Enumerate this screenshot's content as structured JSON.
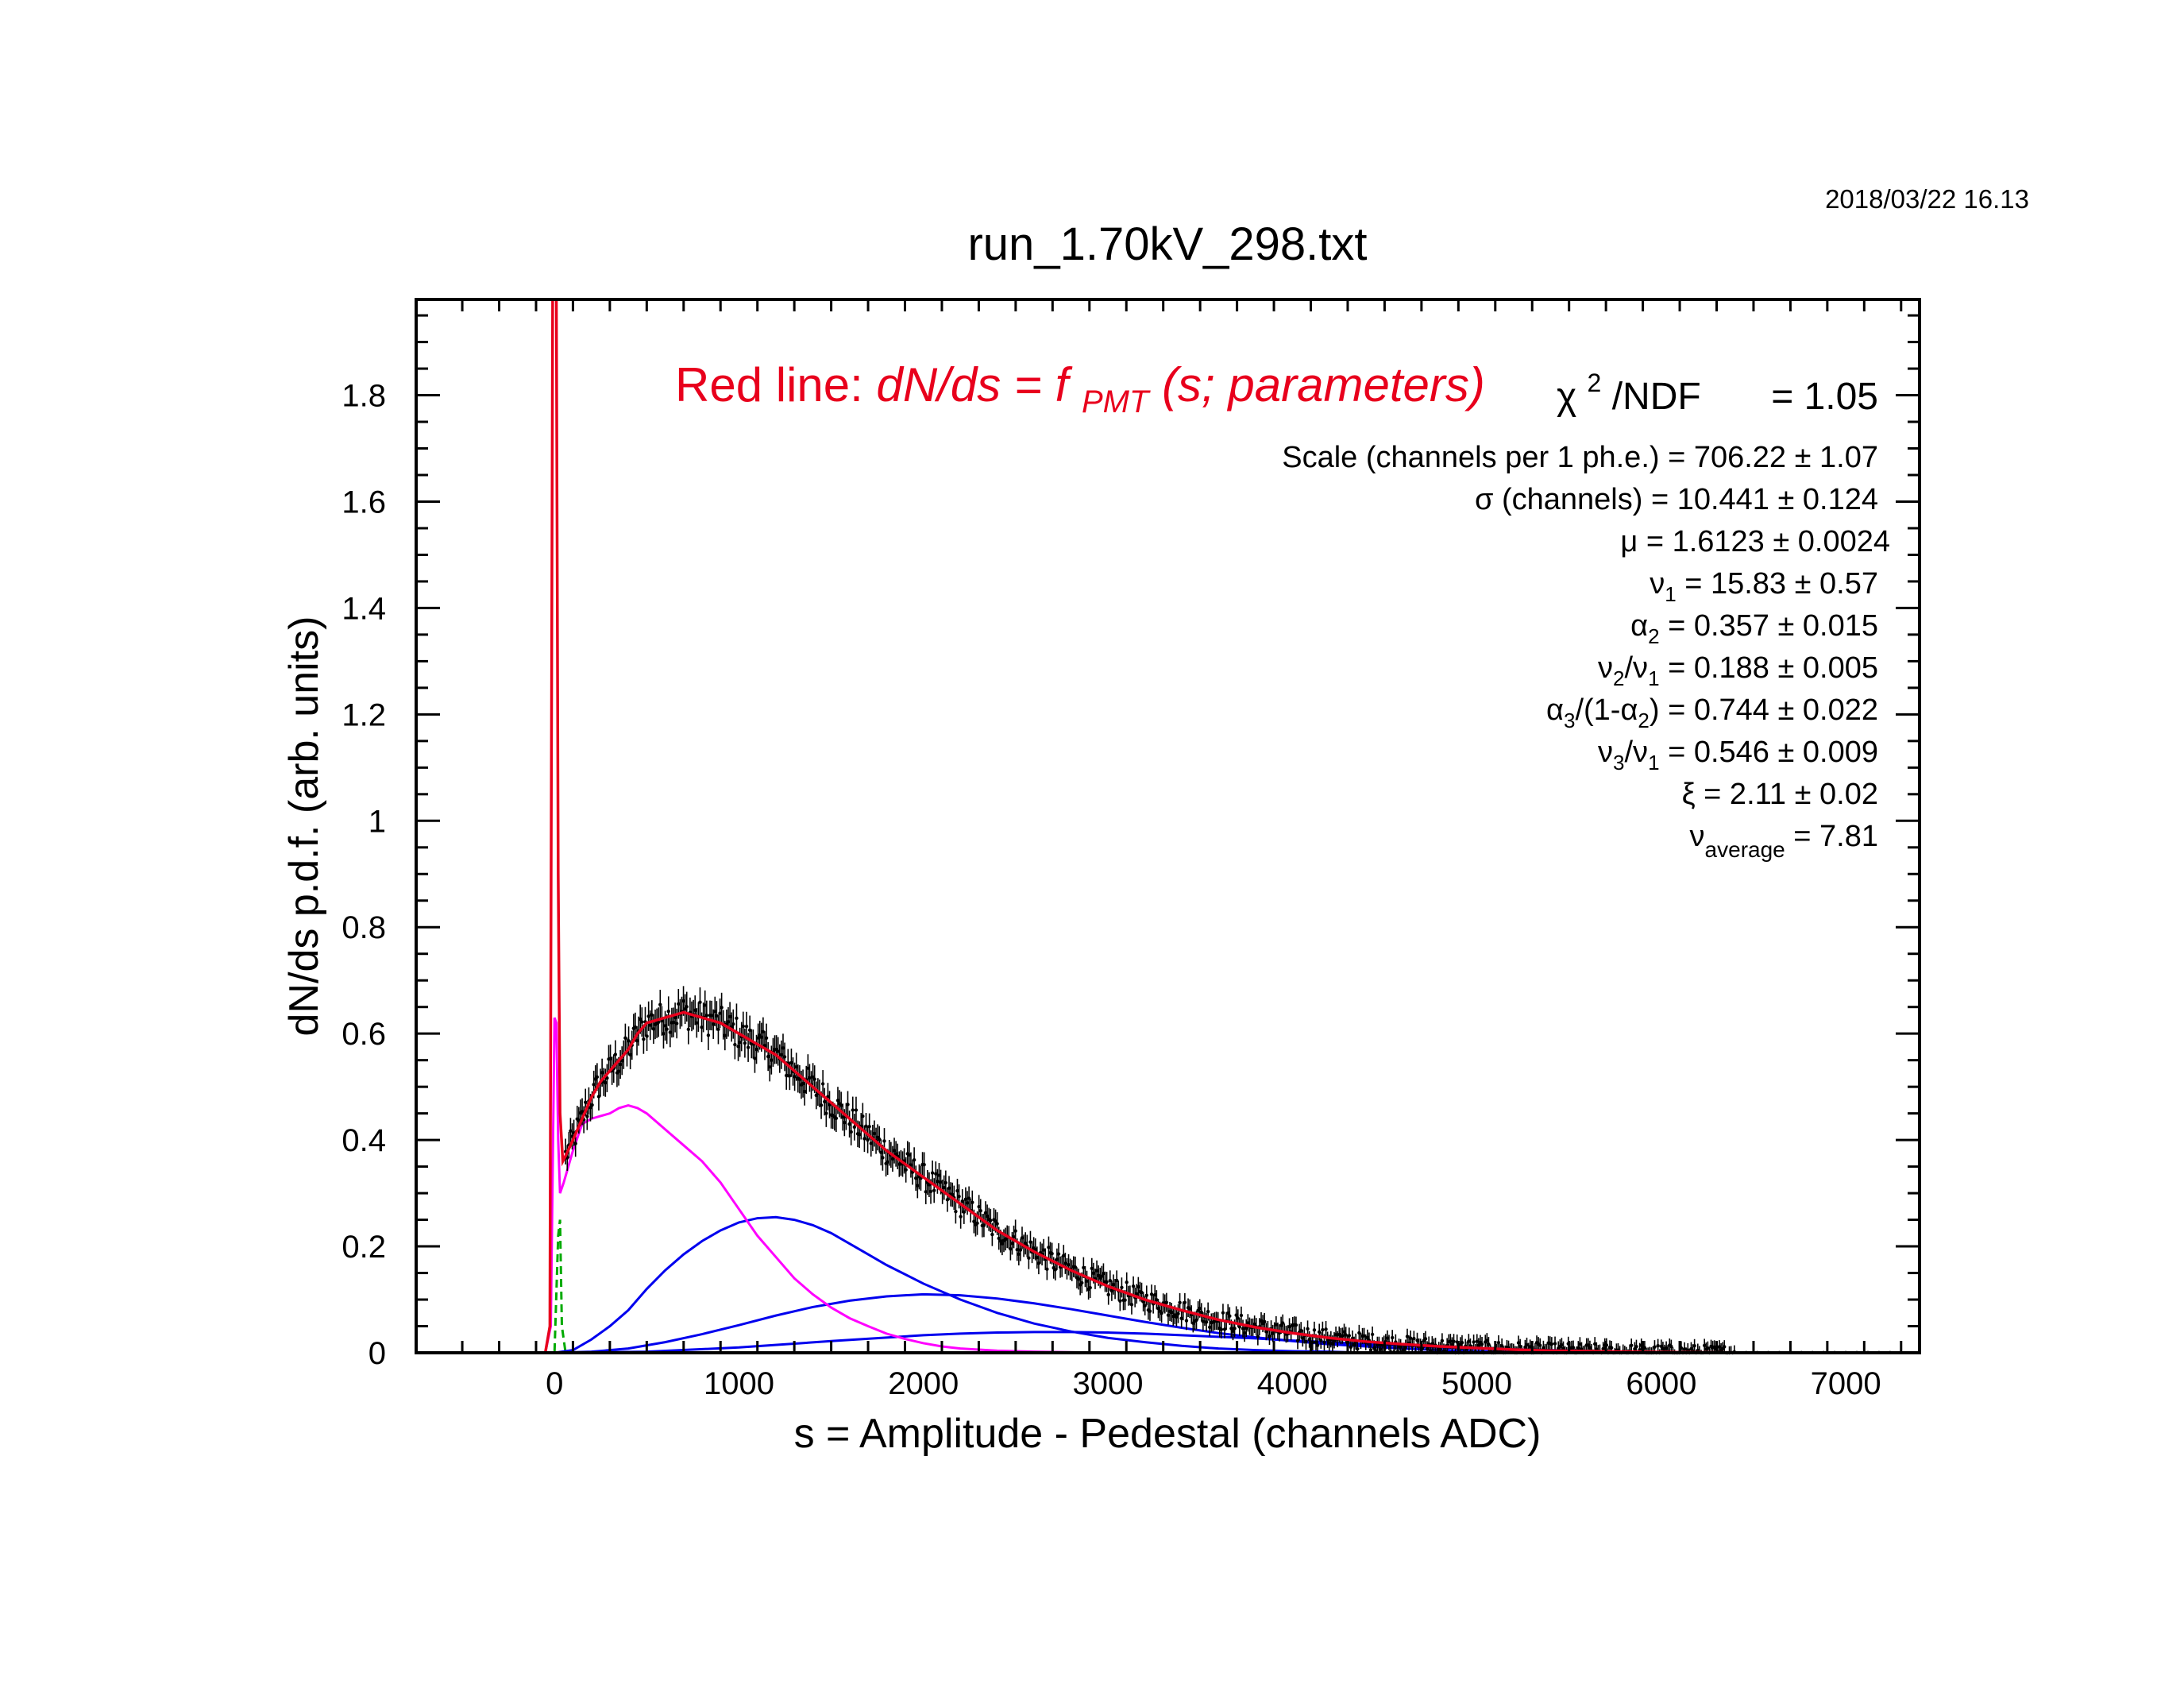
{
  "datestamp": "2018/03/22   16.13",
  "chart_data": {
    "type": "line",
    "title": "run_1.70kV_298.txt",
    "xlabel": "s = Amplitude - Pedestal (channels ADC)",
    "ylabel": "dN/ds p.d.f. (arb. units)",
    "xlim": [
      -750,
      7400
    ],
    "ylim": [
      0,
      1.98
    ],
    "xticks": [
      0,
      1000,
      2000,
      3000,
      4000,
      5000,
      6000,
      7000
    ],
    "xtick_labels": [
      "0",
      "1000",
      "2000",
      "3000",
      "4000",
      "5000",
      "6000",
      "7000"
    ],
    "yticks": [
      0,
      0.2,
      0.4,
      0.6,
      0.8,
      1,
      1.2,
      1.4,
      1.6,
      1.8
    ],
    "ytick_labels": [
      "0",
      "0.2",
      "0.4",
      "0.6",
      "0.8",
      "1",
      "1.2",
      "1.4",
      "1.6",
      "1.8"
    ],
    "grid": false,
    "colors": {
      "data": "#000000",
      "fit": "#e8001c",
      "single_pe": "#ff00ff",
      "multi_pe": "#0000ee",
      "pedestal": "#00aa00"
    },
    "series": [
      {
        "role": "data_histogram",
        "color": "#000000",
        "x": [
          60,
          100,
          150,
          200,
          250,
          300,
          350,
          400,
          450,
          500,
          600,
          700,
          800,
          900,
          1000,
          1100,
          1200,
          1300,
          1400,
          1500,
          1600,
          1700,
          1800,
          2000,
          2200,
          2400,
          2600,
          2800,
          3000,
          3200,
          3400,
          3600,
          3800,
          4000,
          4200,
          4400,
          4600,
          4800,
          5000,
          5200,
          5400,
          5600,
          5800,
          6000,
          6200,
          6400
        ],
        "y": [
          0.37,
          0.4,
          0.44,
          0.48,
          0.51,
          0.53,
          0.55,
          0.57,
          0.6,
          0.62,
          0.63,
          0.64,
          0.63,
          0.62,
          0.6,
          0.58,
          0.56,
          0.53,
          0.5,
          0.47,
          0.44,
          0.41,
          0.38,
          0.33,
          0.28,
          0.23,
          0.19,
          0.155,
          0.125,
          0.1,
          0.08,
          0.062,
          0.048,
          0.037,
          0.028,
          0.021,
          0.016,
          0.012,
          0.009,
          0.006,
          0.004,
          0.003,
          0.002,
          0.0013,
          0.0008,
          0.0004
        ]
      },
      {
        "role": "fit_total",
        "color": "#e8001c",
        "x": [
          -750,
          -50,
          -25,
          -10,
          0,
          10,
          20,
          30,
          45,
          60,
          100,
          150,
          200,
          250,
          300,
          350,
          400,
          450,
          500,
          600,
          700,
          800,
          900,
          1000,
          1100,
          1200,
          1300,
          1400,
          1500,
          1600,
          1700,
          1800,
          2000,
          2200,
          2400,
          2600,
          2800,
          3000,
          3200,
          3400,
          3600,
          3800,
          4000,
          4200,
          4400,
          4600,
          4800,
          5000,
          5200,
          5400,
          5600,
          5800,
          6000,
          6200,
          6400,
          7400
        ],
        "y": [
          0,
          0,
          0.05,
          1.98,
          1.98,
          1.98,
          0.9,
          0.45,
          0.36,
          0.37,
          0.4,
          0.44,
          0.48,
          0.51,
          0.53,
          0.55,
          0.57,
          0.6,
          0.62,
          0.63,
          0.64,
          0.63,
          0.62,
          0.6,
          0.58,
          0.56,
          0.53,
          0.5,
          0.47,
          0.44,
          0.41,
          0.38,
          0.33,
          0.28,
          0.23,
          0.19,
          0.155,
          0.125,
          0.1,
          0.08,
          0.062,
          0.048,
          0.037,
          0.028,
          0.021,
          0.016,
          0.012,
          0.009,
          0.006,
          0.004,
          0.003,
          0.002,
          0.0013,
          0.0008,
          0.0004,
          0
        ]
      },
      {
        "role": "single_photoelectron",
        "color": "#ff00ff",
        "x": [
          -50,
          -20,
          0,
          10,
          20,
          30,
          50,
          100,
          150,
          200,
          250,
          300,
          350,
          400,
          450,
          500,
          600,
          700,
          800,
          900,
          1000,
          1100,
          1200,
          1300,
          1400,
          1500,
          1600,
          1700,
          1800,
          1900,
          2000,
          2100,
          2200,
          2400,
          2600,
          3000
        ],
        "y": [
          0,
          0.05,
          0.63,
          0.62,
          0.4,
          0.3,
          0.32,
          0.38,
          0.43,
          0.44,
          0.445,
          0.45,
          0.46,
          0.465,
          0.46,
          0.45,
          0.42,
          0.39,
          0.36,
          0.32,
          0.27,
          0.22,
          0.18,
          0.14,
          0.11,
          0.085,
          0.065,
          0.05,
          0.036,
          0.026,
          0.018,
          0.012,
          0.008,
          0.004,
          0.002,
          0
        ]
      },
      {
        "role": "two_photoelectron",
        "color": "#0000ee",
        "x": [
          0,
          100,
          200,
          300,
          400,
          500,
          600,
          700,
          800,
          900,
          1000,
          1100,
          1200,
          1300,
          1400,
          1500,
          1600,
          1700,
          1800,
          2000,
          2200,
          2400,
          2600,
          2800,
          3000,
          3200,
          3400,
          3600,
          3800,
          4000,
          4200,
          4400
        ],
        "y": [
          0,
          0.005,
          0.025,
          0.05,
          0.08,
          0.12,
          0.155,
          0.185,
          0.21,
          0.23,
          0.245,
          0.253,
          0.255,
          0.25,
          0.24,
          0.225,
          0.205,
          0.185,
          0.165,
          0.13,
          0.1,
          0.075,
          0.055,
          0.04,
          0.028,
          0.02,
          0.013,
          0.008,
          0.005,
          0.003,
          0.002,
          0
        ]
      },
      {
        "role": "three_photoelectron",
        "color": "#0000ee",
        "x": [
          0,
          200,
          400,
          600,
          800,
          1000,
          1200,
          1400,
          1600,
          1800,
          2000,
          2200,
          2400,
          2600,
          2800,
          3000,
          3200,
          3400,
          3600,
          3800,
          4000,
          4200,
          4400,
          4600,
          4800,
          5000,
          5400
        ],
        "y": [
          0,
          0.002,
          0.008,
          0.02,
          0.035,
          0.052,
          0.07,
          0.086,
          0.098,
          0.106,
          0.11,
          0.108,
          0.102,
          0.093,
          0.082,
          0.07,
          0.058,
          0.047,
          0.037,
          0.029,
          0.022,
          0.016,
          0.012,
          0.008,
          0.005,
          0.003,
          0
        ]
      },
      {
        "role": "four_photoelectron",
        "color": "#0000ee",
        "x": [
          0,
          500,
          1000,
          1500,
          2000,
          2200,
          2400,
          2600,
          2800,
          3000,
          3200,
          3400,
          3600,
          3800,
          4000,
          4200,
          4400,
          4600,
          4800,
          5000,
          5400,
          5800,
          6400
        ],
        "y": [
          0,
          0.002,
          0.01,
          0.022,
          0.033,
          0.036,
          0.038,
          0.039,
          0.039,
          0.038,
          0.036,
          0.033,
          0.03,
          0.027,
          0.023,
          0.02,
          0.016,
          0.013,
          0.01,
          0.008,
          0.005,
          0.002,
          0
        ]
      },
      {
        "role": "pedestal",
        "color": "#00aa00",
        "x": [
          -60,
          0,
          20,
          30,
          40,
          60,
          7400
        ],
        "y": [
          0,
          0,
          0.22,
          0.25,
          0.05,
          0,
          0
        ]
      }
    ],
    "annotations": {
      "fit_label_plain": "Red line:",
      "fit_label_formula": "dN/ds = f",
      "fit_label_sub": "PMT",
      "fit_label_args": "(s; parameters)",
      "chi2_symbol": "χ",
      "chi2_sup": "2",
      "chi2_rest": "/NDF",
      "chi2_value": "=   1.05",
      "scale_line": "Scale (channels per 1 ph.e.) = 706.22 ±   1.07",
      "sigma_line": "σ (channels) = 10.441 ±  0.124",
      "mu_line": "μ  = 1.6123 ± 0.0024",
      "nu1_sym": "ν",
      "nu1_sub": "1",
      "nu1_val": " =  15.83  ±   0.57",
      "alpha2_sym": "α",
      "alpha2_sub": "2",
      "alpha2_val": " =  0.357  ±  0.015",
      "nu2nu1_a": "ν",
      "nu2nu1_a_sub": "2",
      "nu2nu1_b": "/ν",
      "nu2nu1_b_sub": "1",
      "nu2nu1_val": " =  0.188  ±  0.005",
      "alpha3_a": "α",
      "alpha3_a_sub": "3",
      "alpha3_b": "/(1-α",
      "alpha3_b_sub": "2",
      "alpha3_c": ")",
      "alpha3_val": " =  0.744  ±  0.022",
      "nu3nu1_a": "ν",
      "nu3nu1_a_sub": "3",
      "nu3nu1_b": "/ν",
      "nu3nu1_b_sub": "1",
      "nu3nu1_val": " =  0.546  ±  0.009",
      "xi_line": "ξ  =   2.11   ±  0.02",
      "nuavg_sym": "ν",
      "nuavg_sub": "average",
      "nuavg_val": "  =    7.81"
    }
  }
}
